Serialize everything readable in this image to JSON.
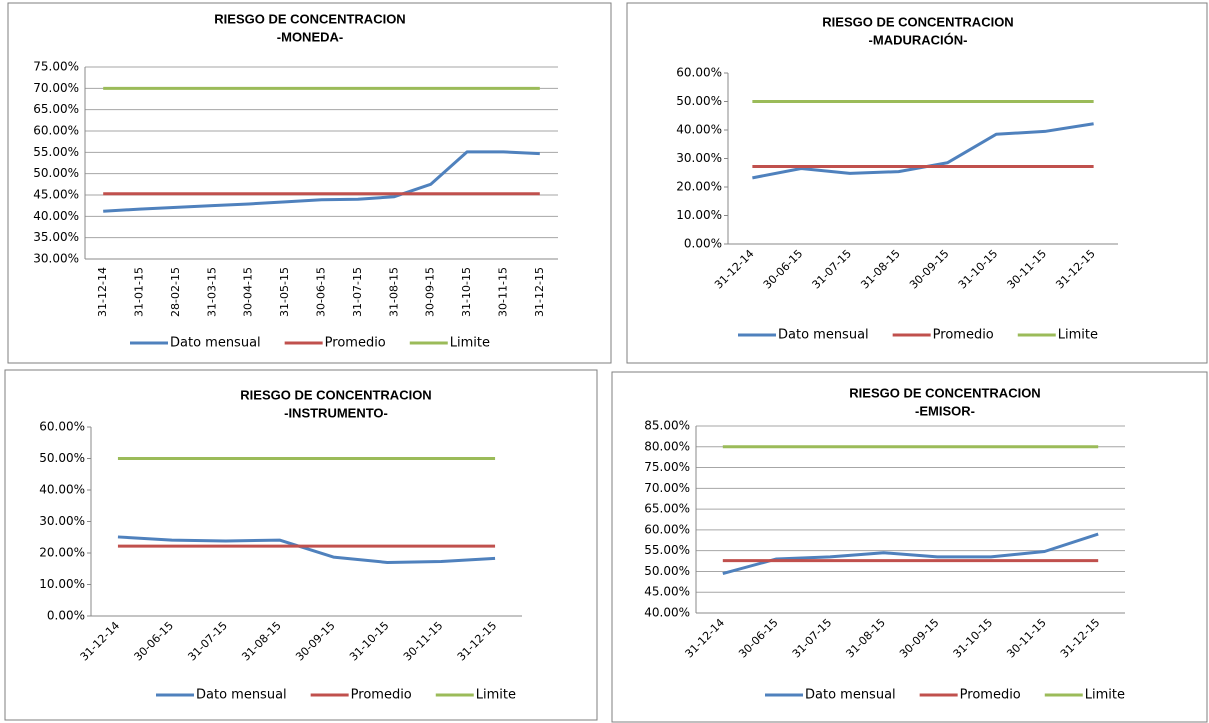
{
  "chart_data": [
    {
      "type": "line",
      "title": "RIESGO DE CONCENTRACION",
      "subtitle": "-MONEDA-",
      "categories": [
        "31-12-14",
        "31-01-15",
        "28-02-15",
        "31-03-15",
        "30-04-15",
        "31-05-15",
        "30-06-15",
        "31-07-15",
        "31-08-15",
        "30-09-15",
        "31-10-15",
        "30-11-15",
        "31-12-15"
      ],
      "series": [
        {
          "name": "Dato mensual",
          "color": "#4f81bd",
          "values": [
            41.2,
            41.7,
            42.1,
            42.5,
            42.9,
            43.4,
            43.9,
            44.0,
            44.6,
            47.5,
            55.1,
            55.1,
            54.7
          ]
        },
        {
          "name": "Promedio",
          "color": "#c0504d",
          "values": [
            45.3,
            45.3,
            45.3,
            45.3,
            45.3,
            45.3,
            45.3,
            45.3,
            45.3,
            45.3,
            45.3,
            45.3,
            45.3
          ]
        },
        {
          "name": "Limite",
          "color": "#9bbb59",
          "values": [
            70,
            70,
            70,
            70,
            70,
            70,
            70,
            70,
            70,
            70,
            70,
            70,
            70
          ]
        }
      ],
      "ylim": [
        30,
        75
      ],
      "yticks": [
        {
          "value": 30,
          "label": "30.00%"
        },
        {
          "value": 35,
          "label": "35.00%"
        },
        {
          "value": 40,
          "label": "40.00%"
        },
        {
          "value": 45,
          "label": "45.00%"
        },
        {
          "value": 50,
          "label": "50.00%"
        },
        {
          "value": 55,
          "label": "55.00%"
        },
        {
          "value": 60,
          "label": "60.00%"
        },
        {
          "value": 65,
          "label": "65.00%"
        },
        {
          "value": 70,
          "label": "70.00%"
        },
        {
          "value": 75,
          "label": "75.00%"
        }
      ],
      "grid": true,
      "legend": "bottom"
    },
    {
      "type": "line",
      "title": "RIESGO DE CONCENTRACION",
      "subtitle": "-MADURACIÓN-",
      "categories": [
        "31-12-14",
        "30-06-15",
        "31-07-15",
        "31-08-15",
        "30-09-15",
        "31-10-15",
        "30-11-15",
        "31-12-15"
      ],
      "series": [
        {
          "name": "Dato mensual",
          "color": "#4f81bd",
          "values": [
            23.2,
            26.5,
            24.8,
            25.4,
            28.5,
            38.5,
            39.5,
            42.2
          ]
        },
        {
          "name": "Promedio",
          "color": "#c0504d",
          "values": [
            27.2,
            27.2,
            27.2,
            27.2,
            27.2,
            27.2,
            27.2,
            27.2
          ]
        },
        {
          "name": "Limite",
          "color": "#9bbb59",
          "values": [
            50,
            50,
            50,
            50,
            50,
            50,
            50,
            50
          ]
        }
      ],
      "ylim": [
        0,
        60
      ],
      "yticks": [
        {
          "value": 0,
          "label": "0.00%"
        },
        {
          "value": 10,
          "label": "10.00%"
        },
        {
          "value": 20,
          "label": "20.00%"
        },
        {
          "value": 30,
          "label": "30.00%"
        },
        {
          "value": 40,
          "label": "40.00%"
        },
        {
          "value": 50,
          "label": "50.00%"
        },
        {
          "value": 60,
          "label": "60.00%"
        }
      ],
      "grid": false,
      "legend": "bottom"
    },
    {
      "type": "line",
      "title": "RIESGO DE CONCENTRACION",
      "subtitle": "-INSTRUMENTO-",
      "categories": [
        "31-12-14",
        "30-06-15",
        "31-07-15",
        "31-08-15",
        "30-09-15",
        "31-10-15",
        "30-11-15",
        "31-12-15"
      ],
      "series": [
        {
          "name": "Dato mensual",
          "color": "#4f81bd",
          "values": [
            25.1,
            24.1,
            23.8,
            24.1,
            18.7,
            17.0,
            17.3,
            18.3
          ]
        },
        {
          "name": "Promedio",
          "color": "#c0504d",
          "values": [
            22.2,
            22.2,
            22.2,
            22.2,
            22.2,
            22.2,
            22.2,
            22.2
          ]
        },
        {
          "name": "Limite",
          "color": "#9bbb59",
          "values": [
            50,
            50,
            50,
            50,
            50,
            50,
            50,
            50
          ]
        }
      ],
      "ylim": [
        0,
        60
      ],
      "yticks": [
        {
          "value": 0,
          "label": "0.00%"
        },
        {
          "value": 10,
          "label": "10.00%"
        },
        {
          "value": 20,
          "label": "20.00%"
        },
        {
          "value": 30,
          "label": "30.00%"
        },
        {
          "value": 40,
          "label": "40.00%"
        },
        {
          "value": 50,
          "label": "50.00%"
        },
        {
          "value": 60,
          "label": "60.00%"
        }
      ],
      "grid": false,
      "legend": "bottom"
    },
    {
      "type": "line",
      "title": "RIESGO DE CONCENTRACION",
      "subtitle": "-EMISOR-",
      "categories": [
        "31-12-14",
        "30-06-15",
        "31-07-15",
        "31-08-15",
        "30-09-15",
        "31-10-15",
        "30-11-15",
        "31-12-15"
      ],
      "series": [
        {
          "name": "Dato mensual",
          "color": "#4f81bd",
          "values": [
            49.5,
            53.0,
            53.5,
            54.5,
            53.5,
            53.5,
            54.8,
            59.0
          ]
        },
        {
          "name": "Promedio",
          "color": "#c0504d",
          "values": [
            52.6,
            52.6,
            52.6,
            52.6,
            52.6,
            52.6,
            52.6,
            52.6
          ]
        },
        {
          "name": "Limite",
          "color": "#9bbb59",
          "values": [
            80,
            80,
            80,
            80,
            80,
            80,
            80,
            80
          ]
        }
      ],
      "ylim": [
        40,
        85
      ],
      "yticks": [
        {
          "value": 40,
          "label": "40.00%"
        },
        {
          "value": 45,
          "label": "45.00%"
        },
        {
          "value": 50,
          "label": "50.00%"
        },
        {
          "value": 55,
          "label": "55.00%"
        },
        {
          "value": 60,
          "label": "60.00%"
        },
        {
          "value": 65,
          "label": "65.00%"
        },
        {
          "value": 70,
          "label": "70.00%"
        },
        {
          "value": 75,
          "label": "75.00%"
        },
        {
          "value": 80,
          "label": "80.00%"
        },
        {
          "value": 85,
          "label": "85.00%"
        }
      ],
      "grid": true,
      "legend": "bottom"
    }
  ]
}
